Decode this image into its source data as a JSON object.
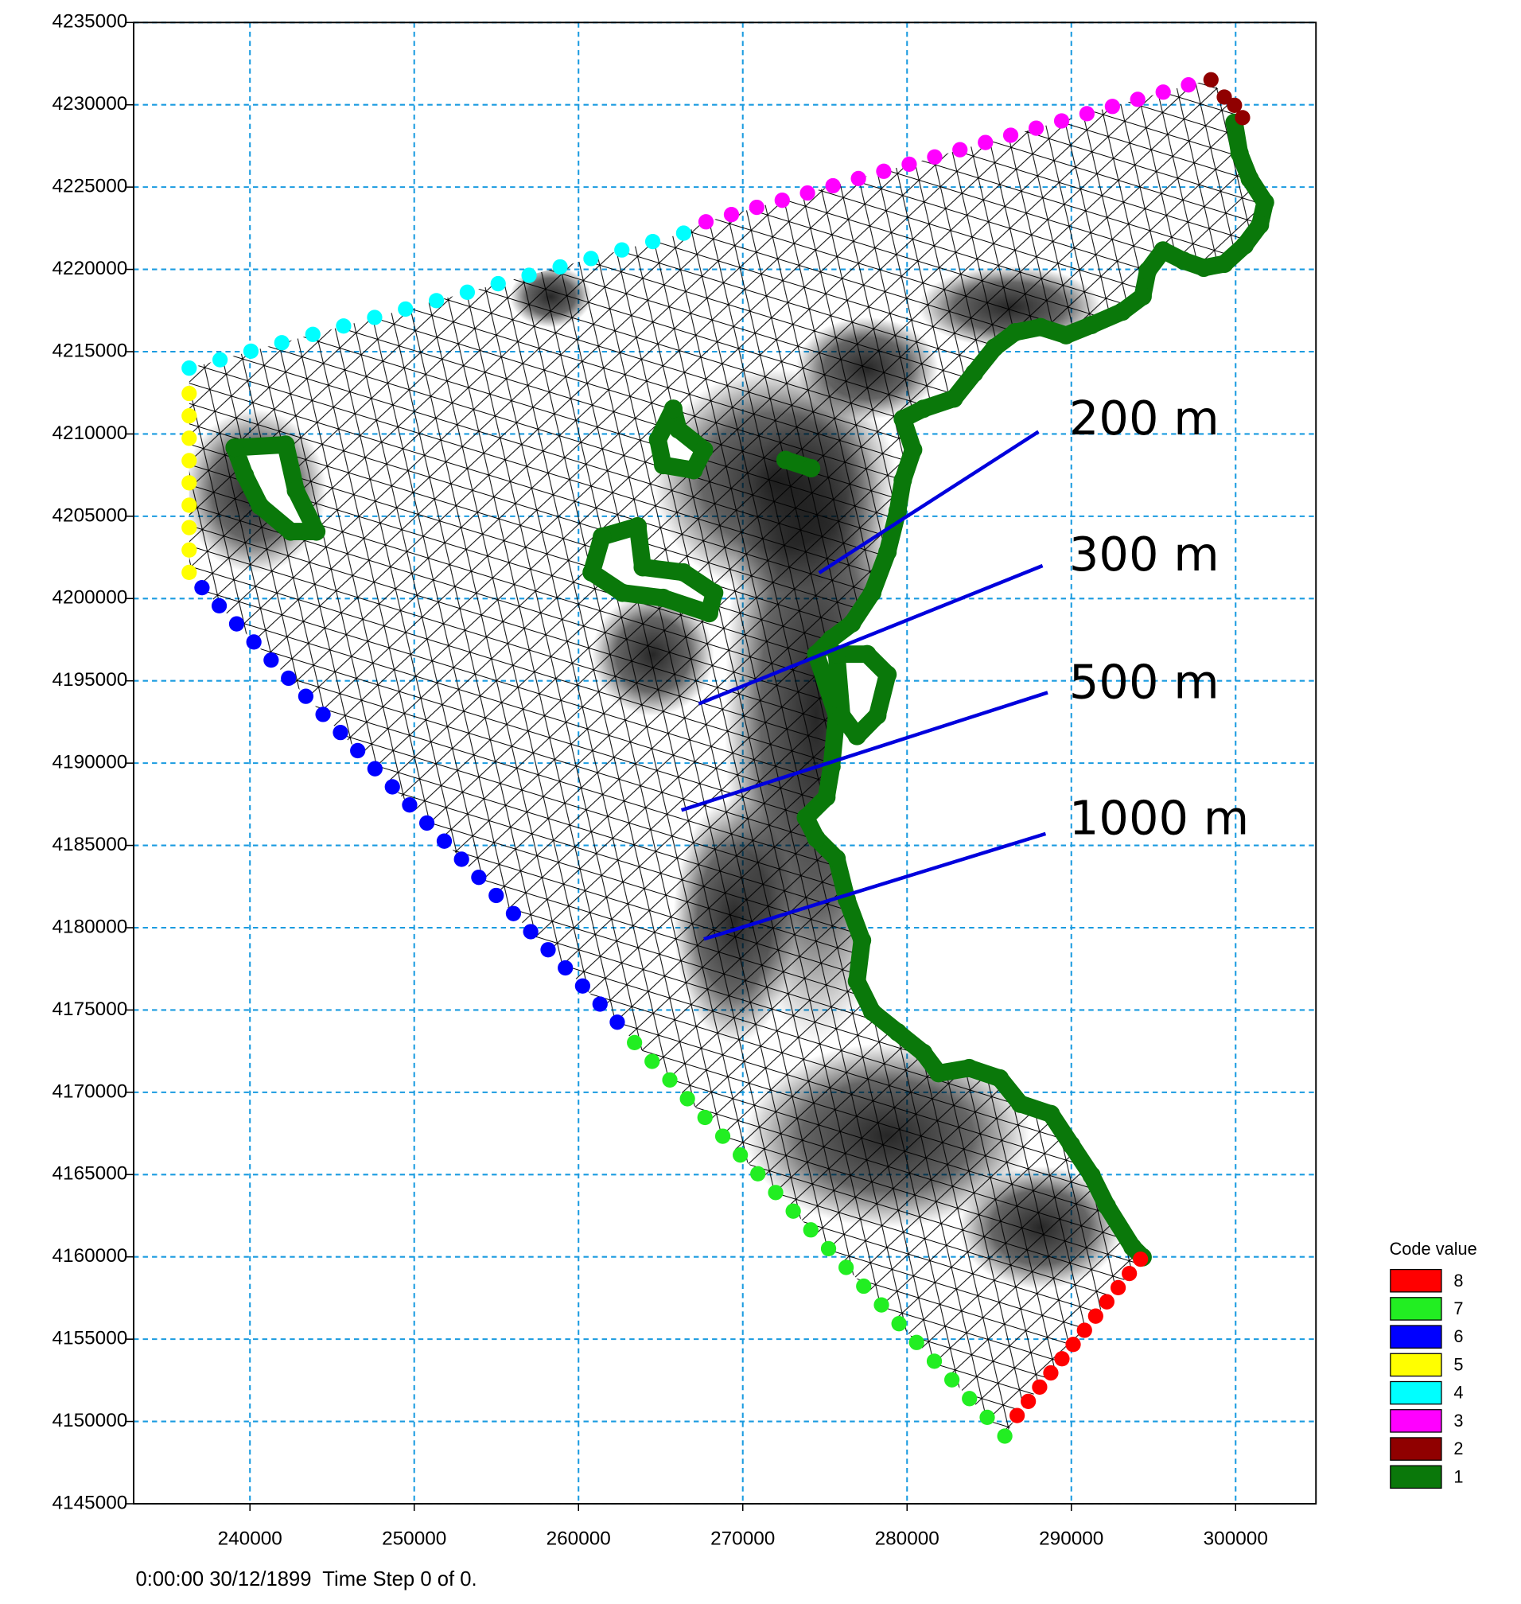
{
  "chart_data": {
    "type": "scatter",
    "xlim": [
      232920,
      304890
    ],
    "ylim": [
      4145000,
      4235000
    ],
    "xticks": [
      240000,
      250000,
      260000,
      270000,
      280000,
      290000,
      300000
    ],
    "yticks": [
      4145000,
      4150000,
      4155000,
      4160000,
      4165000,
      4170000,
      4175000,
      4180000,
      4185000,
      4190000,
      4195000,
      4200000,
      4205000,
      4210000,
      4215000,
      4220000,
      4225000,
      4230000,
      4235000
    ],
    "grid": true,
    "legend": "lower right",
    "legend_title": "Code value",
    "annotations": [
      "200 m",
      "300 m",
      "500 m",
      "1000 m"
    ],
    "footer": "0:00:00 30/12/1899  Time Step 0 of 0.",
    "series": [
      {
        "name": "8",
        "color": "#ff0000",
        "x": [
          286700,
          287380,
          288070,
          288750,
          289430,
          290110,
          290800,
          291480,
          292160,
          292850,
          293530,
          294210
        ],
        "y": [
          4150360,
          4151220,
          4152090,
          4152950,
          4153810,
          4154680,
          4155540,
          4156400,
          4157270,
          4158130,
          4158990,
          4159860
        ]
      },
      {
        "name": "7",
        "color": "#22ee22",
        "x": [
          263410,
          264480,
          265560,
          266630,
          267700,
          268780,
          269850,
          270920,
          272000,
          273070,
          274140,
          275220,
          276290,
          277360,
          278440,
          279510,
          280580,
          281660,
          282730,
          283800,
          284880,
          285950
        ],
        "y": [
          4173020,
          4171880,
          4170750,
          4169610,
          4168470,
          4167330,
          4166190,
          4165050,
          4163910,
          4162780,
          4161640,
          4160500,
          4159360,
          4158220,
          4157080,
          4155940,
          4154800,
          4153660,
          4152530,
          4151390,
          4150250,
          4149110
        ]
      },
      {
        "name": "6",
        "color": "#0000ff",
        "x": [
          237080,
          238130,
          239190,
          240240,
          241290,
          242350,
          243400,
          244450,
          245510,
          246560,
          247610,
          248670,
          249720,
          250770,
          251830,
          252880,
          253930,
          254990,
          256040,
          257090,
          258150,
          259200,
          260250,
          261310,
          262360
        ],
        "y": [
          4200660,
          4199560,
          4198460,
          4197360,
          4196260,
          4195160,
          4194060,
          4192960,
          4191860,
          4190760,
          4189660,
          4188560,
          4187460,
          4186360,
          4185260,
          4184160,
          4183060,
          4181960,
          4180860,
          4179760,
          4178660,
          4177560,
          4176460,
          4175360,
          4174260
        ]
      },
      {
        "name": "5",
        "color": "#ffff00",
        "x": [
          236300,
          236300,
          236300,
          236300,
          236300,
          236300,
          236300,
          236300,
          236300
        ],
        "y": [
          4212460,
          4211100,
          4209740,
          4208380,
          4207030,
          4205670,
          4204310,
          4202950,
          4201590
        ]
      },
      {
        "name": "4",
        "color": "#00ffff",
        "x": [
          236300,
          238180,
          240060,
          241940,
          243830,
          245700,
          247590,
          249470,
          251350,
          253230,
          255110,
          256990,
          258880,
          260760,
          262640,
          264520,
          266400
        ],
        "y": [
          4214000,
          4214510,
          4215030,
          4215540,
          4216050,
          4216560,
          4217080,
          4217590,
          4218100,
          4218610,
          4219130,
          4219640,
          4220150,
          4220660,
          4221180,
          4221690,
          4222200
        ]
      },
      {
        "name": "3",
        "color": "#ff00ff",
        "x": [
          267760,
          269310,
          270850,
          272400,
          273940,
          275490,
          277040,
          278580,
          280130,
          281680,
          283220,
          284770,
          286310,
          287860,
          289410,
          290950,
          292500,
          294040,
          295590,
          297130
        ],
        "y": [
          4222890,
          4223330,
          4223770,
          4224200,
          4224640,
          4225080,
          4225520,
          4225960,
          4226390,
          4226830,
          4227270,
          4227710,
          4228150,
          4228580,
          4229020,
          4229460,
          4229900,
          4230330,
          4230770,
          4231210
        ]
      },
      {
        "name": "2",
        "color": "#900000",
        "x": [
          298500,
          299310,
          299930,
          300420
        ],
        "y": [
          4231520,
          4230470,
          4229970,
          4229220
        ]
      },
      {
        "name": "1",
        "color": "#0a780a",
        "x": [
          299930,
          300240,
          300860,
          301790,
          301480,
          300550,
          299310,
          298060,
          296820,
          295580,
          294650,
          294340,
          293100,
          291230,
          289680,
          288130,
          286580,
          285330,
          284090,
          282850,
          280990,
          279740,
          280370,
          279740,
          279430,
          278810,
          277880,
          276640,
          275400,
          274470,
          275710,
          275400,
          275090,
          273840,
          274470,
          275710,
          276330,
          277260,
          276950,
          277880,
          279430,
          280990,
          281920,
          283780,
          285640,
          286890,
          288750,
          289990,
          291230,
          292160,
          293720,
          294340,
          null,
          239070,
          242170,
          242800,
          244040,
          242480,
          240620,
          239690,
          239070,
          null,
          261430,
          263600,
          263910,
          266390,
          268260,
          267950,
          265150,
          262670,
          260800,
          261430,
          null,
          265770,
          266080,
          267640,
          267010,
          265150,
          264840,
          265770,
          null,
          272600,
          274160,
          null,
          275710,
          277570,
          278810,
          278190,
          276950,
          276020,
          275710
        ],
        "y": [
          4228910,
          4227050,
          4225500,
          4224070,
          4222700,
          4221460,
          4220340,
          4220100,
          4220530,
          4221150,
          4219910,
          4218360,
          4217430,
          4216620,
          4216000,
          4216490,
          4216180,
          4215250,
          4213700,
          4212150,
          4211530,
          4210910,
          4209040,
          4207180,
          4205320,
          4202830,
          4200350,
          4198490,
          4197550,
          4196620,
          4192900,
          4189790,
          4187930,
          4186690,
          4185440,
          4184200,
          4181720,
          4179230,
          4176750,
          4174890,
          4173650,
          4172400,
          4171160,
          4171470,
          4170850,
          4169300,
          4168680,
          4166810,
          4164950,
          4163090,
          4160600,
          4159980,
          null,
          4209170,
          4209350,
          4206560,
          4204070,
          4204070,
          4205630,
          4207490,
          4209170,
          null,
          4203760,
          4204390,
          4201900,
          4201590,
          4200350,
          4199110,
          4200040,
          4200350,
          4201590,
          4203760,
          null,
          4211530,
          4210280,
          4209040,
          4207800,
          4208110,
          4209660,
          4211530,
          null,
          4208420,
          4207920,
          null,
          4196620,
          4196620,
          4195380,
          4192900,
          4191650,
          4192900,
          4196620
        ]
      }
    ]
  }
}
